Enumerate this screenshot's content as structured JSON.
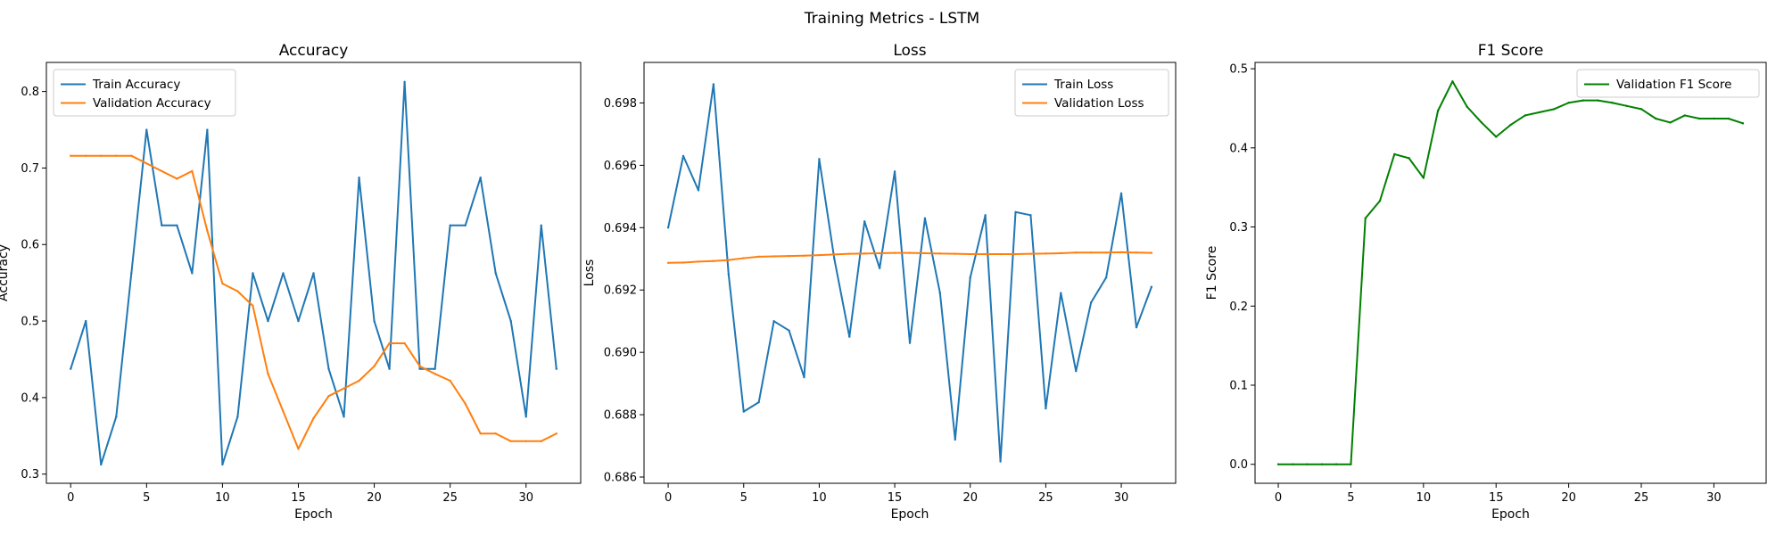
{
  "figure": {
    "suptitle": "Training Metrics - LSTM"
  },
  "chart_data": [
    {
      "type": "line",
      "title": "Accuracy",
      "xlabel": "Epoch",
      "ylabel": "Accuracy",
      "xlim": [
        -1.6,
        33.6
      ],
      "ylim": [
        0.288,
        0.838
      ],
      "xticks": [
        0,
        5,
        10,
        15,
        20,
        25,
        30
      ],
      "yticks": [
        0.3,
        0.4,
        0.5,
        0.6,
        0.7,
        0.8
      ],
      "tick_decimals": 1,
      "legend_position": "top-left",
      "x": [
        0,
        1,
        2,
        3,
        4,
        5,
        6,
        7,
        8,
        9,
        10,
        11,
        12,
        13,
        14,
        15,
        16,
        17,
        18,
        19,
        20,
        21,
        22,
        23,
        24,
        25,
        26,
        27,
        28,
        29,
        30,
        31,
        32
      ],
      "series": [
        {
          "name": "Train Accuracy",
          "color": "#1f77b4",
          "values": [
            0.4375,
            0.5,
            0.3125,
            0.375,
            0.5625,
            0.75,
            0.625,
            0.625,
            0.5625,
            0.75,
            0.3125,
            0.375,
            0.5625,
            0.5,
            0.5625,
            0.5,
            0.5625,
            0.4375,
            0.375,
            0.6875,
            0.5,
            0.4375,
            0.8125,
            0.4375,
            0.4375,
            0.625,
            0.625,
            0.6875,
            0.5625,
            0.5,
            0.375,
            0.625,
            0.4375
          ]
        },
        {
          "name": "Validation Accuracy",
          "color": "#ff7f0e",
          "values": [
            0.716,
            0.716,
            0.716,
            0.716,
            0.716,
            0.706,
            0.696,
            0.686,
            0.696,
            0.618,
            0.549,
            0.539,
            0.52,
            0.431,
            0.382,
            0.333,
            0.373,
            0.402,
            0.412,
            0.422,
            0.441,
            0.471,
            0.471,
            0.441,
            0.431,
            0.422,
            0.392,
            0.353,
            0.353,
            0.343,
            0.343,
            0.343,
            0.353
          ]
        }
      ]
    },
    {
      "type": "line",
      "title": "Loss",
      "xlabel": "Epoch",
      "ylabel": "Loss",
      "xlim": [
        -1.6,
        33.6
      ],
      "ylim": [
        0.6858,
        0.6993
      ],
      "xticks": [
        0,
        5,
        10,
        15,
        20,
        25,
        30
      ],
      "yticks": [
        0.686,
        0.688,
        0.69,
        0.692,
        0.694,
        0.696,
        0.698
      ],
      "tick_decimals": 3,
      "legend_position": "top-right",
      "x": [
        0,
        1,
        2,
        3,
        4,
        5,
        6,
        7,
        8,
        9,
        10,
        11,
        12,
        13,
        14,
        15,
        16,
        17,
        18,
        19,
        20,
        21,
        22,
        23,
        24,
        25,
        26,
        27,
        28,
        29,
        30,
        31,
        32
      ],
      "series": [
        {
          "name": "Train Loss",
          "color": "#1f77b4",
          "values": [
            0.694,
            0.6963,
            0.6952,
            0.6986,
            0.6925,
            0.6881,
            0.6884,
            0.691,
            0.6907,
            0.6892,
            0.6962,
            0.693,
            0.6905,
            0.6942,
            0.6927,
            0.6958,
            0.6903,
            0.6943,
            0.6919,
            0.6872,
            0.6924,
            0.6944,
            0.6865,
            0.6945,
            0.6944,
            0.6882,
            0.6919,
            0.6894,
            0.6916,
            0.6924,
            0.6951,
            0.6908,
            0.6921
          ]
        },
        {
          "name": "Validation Loss",
          "color": "#ff7f0e",
          "values": [
            0.69287,
            0.69288,
            0.69291,
            0.69293,
            0.69296,
            0.69302,
            0.69307,
            0.69308,
            0.69309,
            0.6931,
            0.69312,
            0.69314,
            0.69316,
            0.69317,
            0.69318,
            0.69319,
            0.69319,
            0.69318,
            0.69317,
            0.69316,
            0.69315,
            0.69315,
            0.69315,
            0.69315,
            0.69316,
            0.69317,
            0.69318,
            0.6932,
            0.6932,
            0.6932,
            0.69321,
            0.6932,
            0.69319
          ]
        }
      ]
    },
    {
      "type": "line",
      "title": "F1 Score",
      "xlabel": "Epoch",
      "ylabel": "F1 Score",
      "xlim": [
        -1.6,
        33.6
      ],
      "ylim": [
        -0.024,
        0.508
      ],
      "xticks": [
        0,
        5,
        10,
        15,
        20,
        25,
        30
      ],
      "yticks": [
        0.0,
        0.1,
        0.2,
        0.3,
        0.4,
        0.5
      ],
      "tick_decimals": 1,
      "legend_position": "top-right",
      "x": [
        0,
        1,
        2,
        3,
        4,
        5,
        6,
        7,
        8,
        9,
        10,
        11,
        12,
        13,
        14,
        15,
        16,
        17,
        18,
        19,
        20,
        21,
        22,
        23,
        24,
        25,
        26,
        27,
        28,
        29,
        30,
        31,
        32
      ],
      "series": [
        {
          "name": "Validation F1 Score",
          "color": "#008000",
          "values": [
            0,
            0,
            0,
            0,
            0,
            0,
            0.311,
            0.333,
            0.392,
            0.387,
            0.362,
            0.447,
            0.484,
            0.452,
            0.432,
            0.414,
            0.429,
            0.441,
            0.445,
            0.449,
            0.457,
            0.46,
            0.46,
            0.457,
            0.453,
            0.449,
            0.437,
            0.432,
            0.441,
            0.437,
            0.437,
            0.437,
            0.431
          ]
        }
      ]
    }
  ]
}
